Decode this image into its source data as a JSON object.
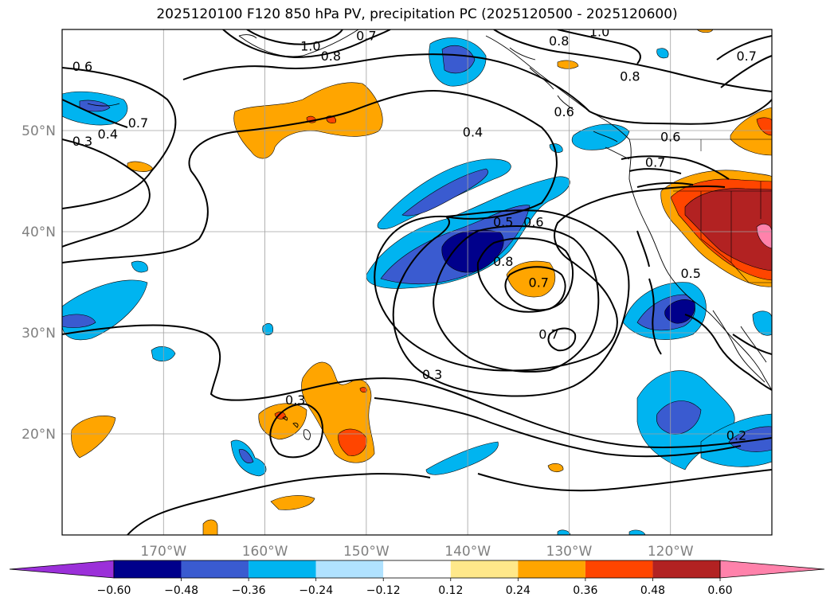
{
  "title": "2025120100 F120 850 hPa PV, precipitation PC (2025120500 - 2025120600)",
  "map": {
    "projection": "equirectangular",
    "lon_range": [
      -180,
      -110
    ],
    "lat_range": [
      10,
      60
    ],
    "lat_ticks": [
      {
        "value": 20,
        "label": "20°N"
      },
      {
        "value": 30,
        "label": "30°N"
      },
      {
        "value": 40,
        "label": "40°N"
      },
      {
        "value": 50,
        "label": "50°N"
      }
    ],
    "lon_ticks": [
      {
        "value": -170,
        "label": "170°W"
      },
      {
        "value": -160,
        "label": "160°W"
      },
      {
        "value": -150,
        "label": "150°W"
      },
      {
        "value": -140,
        "label": "140°W"
      },
      {
        "value": -130,
        "label": "130°W"
      },
      {
        "value": -120,
        "label": "120°W"
      }
    ],
    "grid": true
  },
  "colorbar": {
    "extend": "both",
    "colors": [
      "#9b30d9",
      "#00008b",
      "#3a5bd0",
      "#00b4f0",
      "#b0e2ff",
      "#ffffff",
      "#ffe88a",
      "#ffa500",
      "#ff4500",
      "#b22222",
      "#ff82ab"
    ],
    "ticks": [
      "−0.60",
      "−0.48",
      "−0.36",
      "−0.24",
      "−0.12",
      "0.12",
      "0.24",
      "0.36",
      "0.48",
      "0.60"
    ]
  },
  "pv_labels": [
    {
      "lon": -178.0,
      "lat": 56.0,
      "text": "0.6"
    },
    {
      "lon": -178.0,
      "lat": 48.6,
      "text": "0.3"
    },
    {
      "lon": -175.5,
      "lat": 49.3,
      "text": "0.4"
    },
    {
      "lon": -172.5,
      "lat": 50.4,
      "text": "0.7"
    },
    {
      "lon": -155.5,
      "lat": 58.0,
      "text": "1.0"
    },
    {
      "lon": -153.5,
      "lat": 57.0,
      "text": "0.8"
    },
    {
      "lon": -150.0,
      "lat": 59.0,
      "text": "0.7"
    },
    {
      "lon": -139.5,
      "lat": 49.5,
      "text": "0.4"
    },
    {
      "lon": -131.0,
      "lat": 58.5,
      "text": "0.8"
    },
    {
      "lon": -130.5,
      "lat": 51.5,
      "text": "0.6"
    },
    {
      "lon": -124.0,
      "lat": 55.0,
      "text": "0.8"
    },
    {
      "lon": -120.0,
      "lat": 49.0,
      "text": "0.6"
    },
    {
      "lon": -121.5,
      "lat": 46.5,
      "text": "0.7"
    },
    {
      "lon": -127.0,
      "lat": 59.4,
      "text": "1.0"
    },
    {
      "lon": -112.5,
      "lat": 57.0,
      "text": "0.7"
    },
    {
      "lon": -136.5,
      "lat": 40.6,
      "text": "0.5"
    },
    {
      "lon": -133.5,
      "lat": 40.6,
      "text": "0.6"
    },
    {
      "lon": -136.5,
      "lat": 36.7,
      "text": "0.8"
    },
    {
      "lon": -133.0,
      "lat": 34.6,
      "text": "0.7"
    },
    {
      "lon": -118.0,
      "lat": 35.5,
      "text": "0.5"
    },
    {
      "lon": -132.0,
      "lat": 29.5,
      "text": "0.7"
    },
    {
      "lon": -143.5,
      "lat": 25.5,
      "text": "0.3"
    },
    {
      "lon": -157.0,
      "lat": 23.0,
      "text": "0.3"
    },
    {
      "lon": -113.5,
      "lat": 19.5,
      "text": "0.2"
    }
  ]
}
